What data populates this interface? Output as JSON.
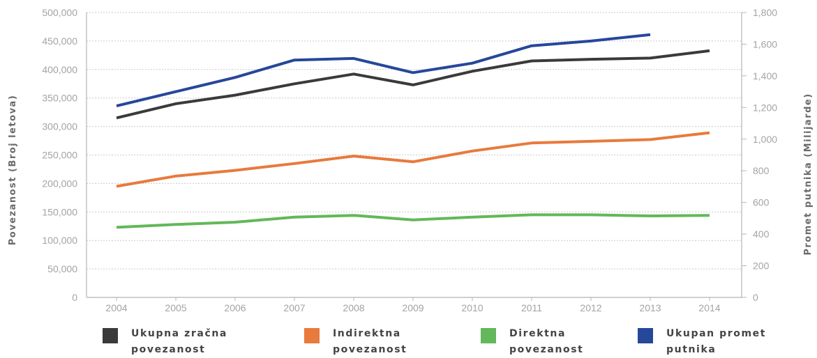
{
  "chart_data": {
    "type": "line",
    "x": [
      "2004",
      "2005",
      "2006",
      "2007",
      "2008",
      "2009",
      "2010",
      "2011",
      "2012",
      "2013",
      "2014"
    ],
    "ylabel": "Povezanost (Broj letova)",
    "ylabel_right": "Promet putnika (Milijarde)",
    "ylim": [
      0,
      500000
    ],
    "ylim_right": [
      0,
      1800
    ],
    "yticks": [
      "0",
      "50,000",
      "100,000",
      "150,000",
      "200,000",
      "250,000",
      "300,000",
      "350,000",
      "400,000",
      "450,000",
      "500,000"
    ],
    "yticks_right": [
      "0",
      "200",
      "400",
      "600",
      "800",
      "1,000",
      "1,200",
      "1,400",
      "1,600",
      "1,800"
    ],
    "grid": true,
    "legend_position": "bottom",
    "series": [
      {
        "name": "Ukupna zračna povezanost",
        "axis": "left",
        "color": "#3a3a3a",
        "values": [
          315000,
          340000,
          355000,
          375000,
          392000,
          373000,
          397000,
          415000,
          418000,
          420000,
          433000
        ]
      },
      {
        "name": "Indirektna povezanost",
        "axis": "left",
        "color": "#e87a3c",
        "values": [
          195000,
          213000,
          223000,
          235000,
          248000,
          238000,
          257000,
          271000,
          274000,
          277000,
          289000
        ]
      },
      {
        "name": "Direktna povezanost",
        "axis": "left",
        "color": "#62b85a",
        "values": [
          123000,
          128000,
          132000,
          141000,
          144000,
          136000,
          141000,
          145000,
          145000,
          143000,
          144000
        ]
      },
      {
        "name": "Ukupan promet putnika",
        "axis": "right",
        "color": "#26479a",
        "values": [
          1210,
          1300,
          1390,
          1500,
          1510,
          1420,
          1480,
          1590,
          1620,
          1660,
          null
        ]
      }
    ]
  },
  "legend": [
    {
      "label": "Ukupna zračna\npovezanost",
      "color": "#3a3a3a"
    },
    {
      "label": "Indirektna\npovezanost",
      "color": "#e87a3c"
    },
    {
      "label": "Direktna\npovezanost",
      "color": "#62b85a"
    },
    {
      "label": "Ukupan promet\nputnika",
      "color": "#26479a"
    }
  ]
}
